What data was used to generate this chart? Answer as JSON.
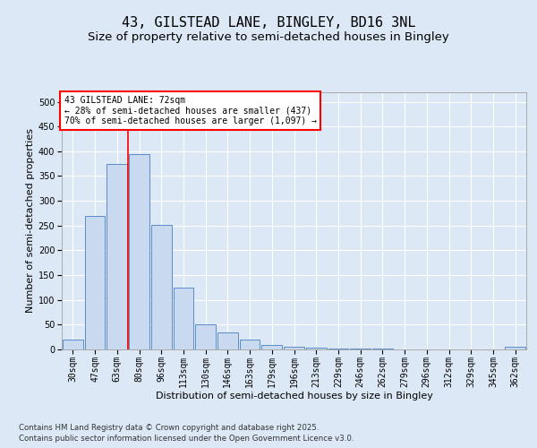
{
  "title": "43, GILSTEAD LANE, BINGLEY, BD16 3NL",
  "subtitle": "Size of property relative to semi-detached houses in Bingley",
  "xlabel": "Distribution of semi-detached houses by size in Bingley",
  "ylabel": "Number of semi-detached properties",
  "categories": [
    "30sqm",
    "47sqm",
    "63sqm",
    "80sqm",
    "96sqm",
    "113sqm",
    "130sqm",
    "146sqm",
    "163sqm",
    "179sqm",
    "196sqm",
    "213sqm",
    "229sqm",
    "246sqm",
    "262sqm",
    "279sqm",
    "296sqm",
    "312sqm",
    "329sqm",
    "345sqm",
    "362sqm"
  ],
  "values": [
    20,
    270,
    375,
    395,
    252,
    125,
    50,
    35,
    20,
    9,
    6,
    4,
    2,
    1,
    1,
    0,
    0,
    0,
    0,
    0,
    5
  ],
  "bar_color": "#c9daf0",
  "bar_edge_color": "#5b8cc8",
  "vline_color": "red",
  "annotation_text": "43 GILSTEAD LANE: 72sqm\n← 28% of semi-detached houses are smaller (437)\n70% of semi-detached houses are larger (1,097) →",
  "annotation_box_color": "red",
  "annotation_bg_color": "white",
  "ylim": [
    0,
    520
  ],
  "yticks": [
    0,
    50,
    100,
    150,
    200,
    250,
    300,
    350,
    400,
    450,
    500
  ],
  "background_color": "#dce8f5",
  "plot_bg_color": "#dce8f5",
  "grid_color": "#ffffff",
  "footer_line1": "Contains HM Land Registry data © Crown copyright and database right 2025.",
  "footer_line2": "Contains public sector information licensed under the Open Government Licence v3.0.",
  "title_fontsize": 11,
  "subtitle_fontsize": 9.5,
  "axis_label_fontsize": 8,
  "tick_fontsize": 7,
  "annotation_fontsize": 7
}
